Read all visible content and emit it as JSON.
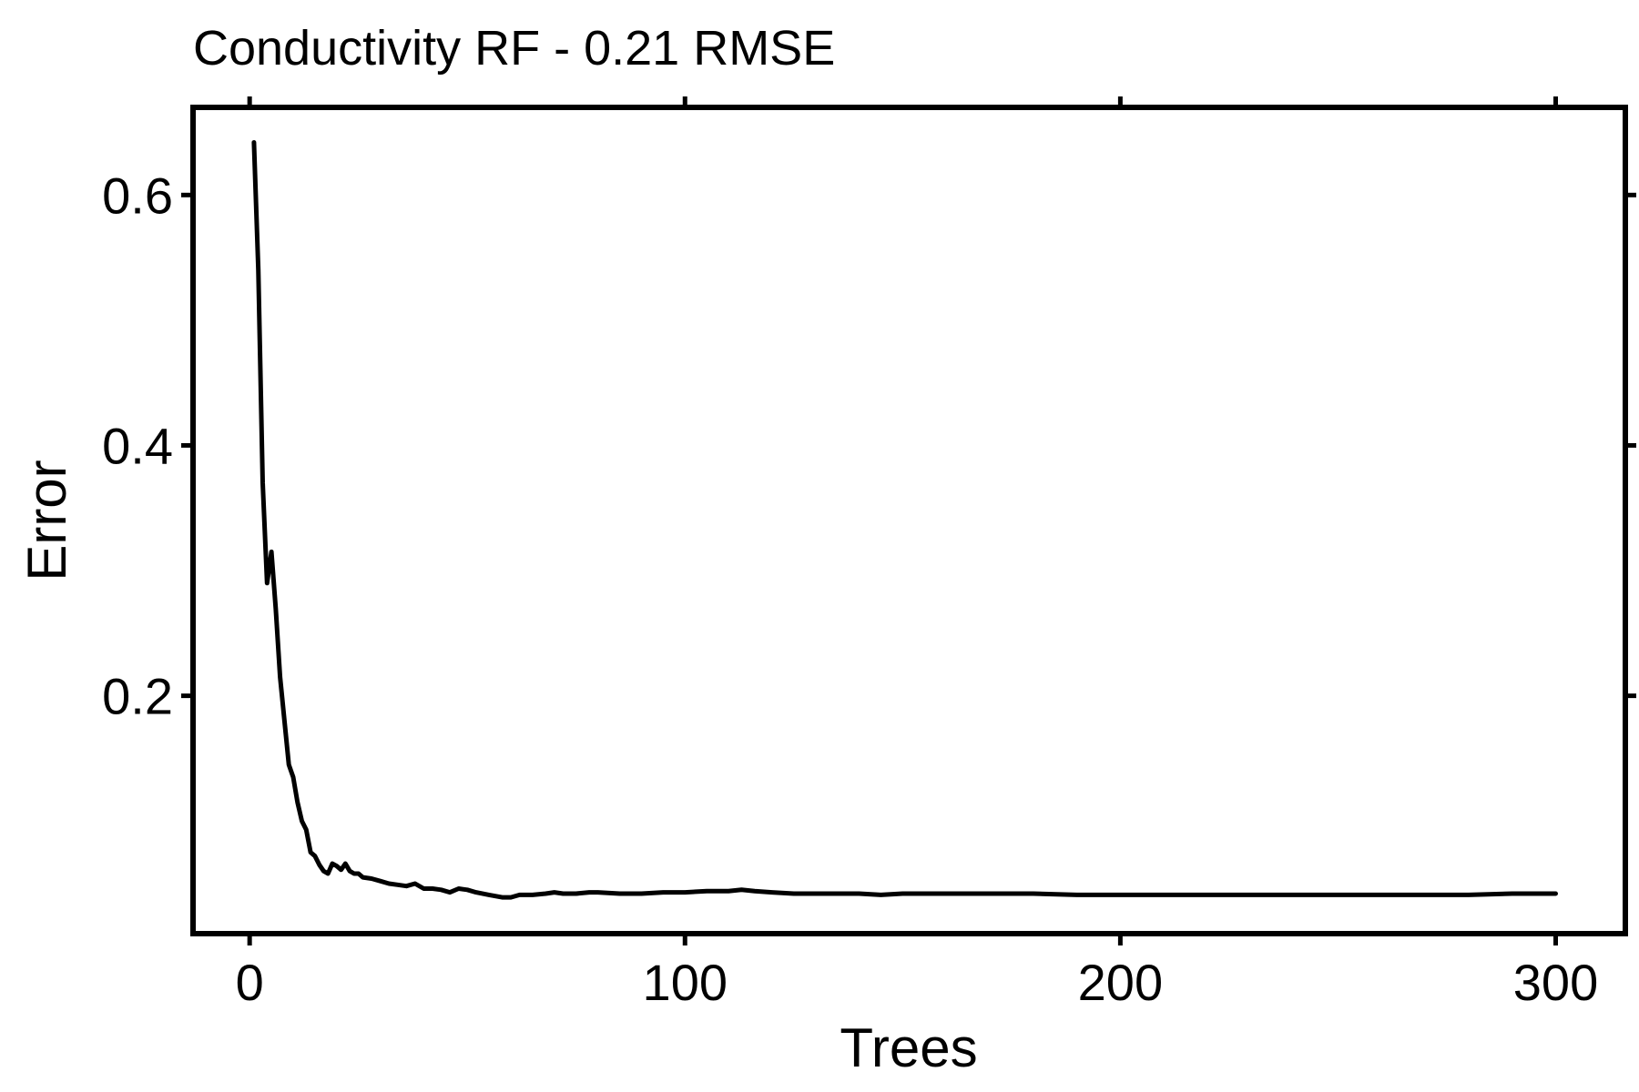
{
  "chart_data": {
    "type": "line",
    "title": "Conductivity RF - 0.21 RMSE",
    "xlabel": "Trees",
    "ylabel": "Error",
    "xlim": [
      -13,
      316
    ],
    "ylim": [
      0.01,
      0.67
    ],
    "xticks": [
      0,
      100,
      200,
      300
    ],
    "yticks": [
      0.2,
      0.4,
      0.6
    ],
    "grid": false,
    "legend": "none",
    "line_color": "#000000",
    "series": [
      {
        "x": [
          1,
          2,
          3,
          4,
          5,
          6,
          7,
          8,
          9,
          10,
          11,
          12,
          13,
          14,
          15,
          16,
          17,
          18,
          19,
          20,
          21,
          22,
          23,
          24,
          25,
          26,
          28,
          30,
          32,
          34,
          36,
          38,
          40,
          42,
          44,
          46,
          48,
          50,
          52,
          55,
          58,
          60,
          62,
          65,
          68,
          70,
          72,
          75,
          78,
          80,
          85,
          90,
          95,
          100,
          105,
          110,
          113,
          116,
          120,
          125,
          130,
          140,
          145,
          150,
          160,
          170,
          180,
          190,
          195,
          200,
          210,
          220,
          230,
          240,
          250,
          260,
          270,
          280,
          290,
          300
        ],
        "y": [
          0.642,
          0.54,
          0.37,
          0.29,
          0.315,
          0.27,
          0.215,
          0.18,
          0.145,
          0.135,
          0.115,
          0.1,
          0.093,
          0.075,
          0.072,
          0.065,
          0.06,
          0.058,
          0.066,
          0.064,
          0.061,
          0.066,
          0.06,
          0.058,
          0.058,
          0.055,
          0.054,
          0.052,
          0.05,
          0.049,
          0.048,
          0.05,
          0.046,
          0.046,
          0.045,
          0.043,
          0.046,
          0.045,
          0.043,
          0.041,
          0.039,
          0.039,
          0.041,
          0.041,
          0.042,
          0.043,
          0.042,
          0.042,
          0.043,
          0.043,
          0.042,
          0.042,
          0.043,
          0.043,
          0.044,
          0.044,
          0.045,
          0.044,
          0.043,
          0.042,
          0.042,
          0.042,
          0.041,
          0.042,
          0.042,
          0.042,
          0.042,
          0.041,
          0.041,
          0.041,
          0.041,
          0.041,
          0.041,
          0.041,
          0.041,
          0.041,
          0.041,
          0.041,
          0.042,
          0.042
        ]
      }
    ]
  }
}
